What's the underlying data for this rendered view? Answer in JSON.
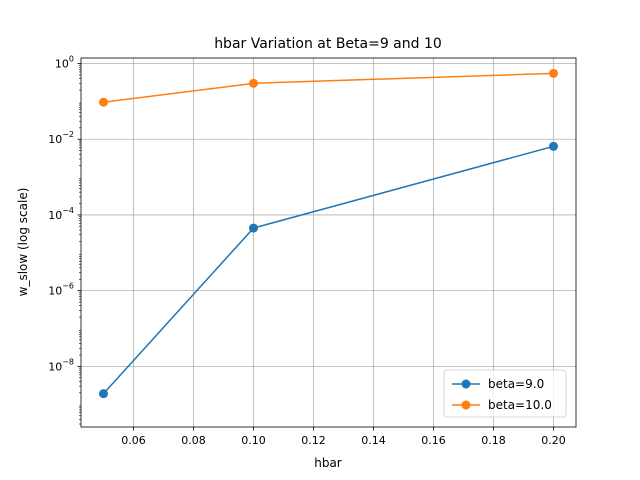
{
  "chart_data": {
    "type": "line",
    "title": "hbar Variation at Beta=9 and 10",
    "xlabel": "hbar",
    "ylabel": "w_slow (log scale)",
    "x_scale": "linear",
    "y_scale": "log",
    "xlim": [
      0.0425,
      0.2075
    ],
    "ylim": [
      2.5e-10,
      1.4
    ],
    "x_ticks": [
      0.06,
      0.08,
      0.1,
      0.12,
      0.14,
      0.16,
      0.18,
      0.2
    ],
    "x_tick_labels": [
      "0.06",
      "0.08",
      "0.10",
      "0.12",
      "0.14",
      "0.16",
      "0.18",
      "0.20"
    ],
    "y_ticks": [
      1e-08,
      1e-06,
      0.0001,
      0.01,
      1
    ],
    "y_tick_labels": [
      {
        "base": "10",
        "exp": "−8"
      },
      {
        "base": "10",
        "exp": "−6"
      },
      {
        "base": "10",
        "exp": "−4"
      },
      {
        "base": "10",
        "exp": "−2"
      },
      {
        "base": "10",
        "exp": "0"
      }
    ],
    "grid": true,
    "legend_position": "lower-right",
    "series": [
      {
        "name": "beta=9.0",
        "color": "#1f77b4",
        "marker": "circle",
        "x": [
          0.05,
          0.1,
          0.2
        ],
        "y": [
          1.9e-09,
          4.5e-05,
          0.0065
        ]
      },
      {
        "name": "beta=10.0",
        "color": "#ff7f0e",
        "marker": "circle",
        "x": [
          0.05,
          0.1,
          0.2
        ],
        "y": [
          0.095,
          0.3,
          0.55
        ]
      }
    ]
  }
}
